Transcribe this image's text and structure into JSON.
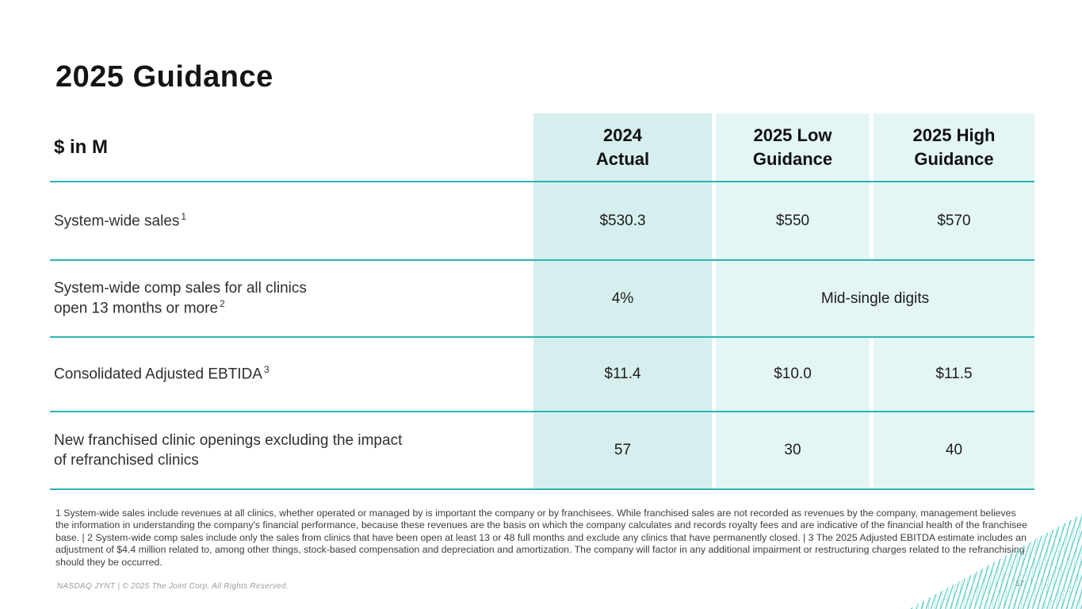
{
  "slide_title": "2025 Guidance",
  "table": {
    "unit_label": "$ in M",
    "columns": [
      {
        "line1": "2024",
        "line2": "Actual"
      },
      {
        "line1": "2025 Low",
        "line2": "Guidance"
      },
      {
        "line1": "2025 High",
        "line2": "Guidance"
      }
    ],
    "rows": [
      {
        "line1": "System-wide sales",
        "sup1": "1",
        "values": {
          "c1": "$530.3",
          "c2": "$550",
          "c3": "$570"
        }
      },
      {
        "line1": "System-wide comp sales for all clinics",
        "line2": "open 13 months or more",
        "sup2": "2",
        "values": {
          "c1": "4%",
          "merged": "Mid-single digits"
        }
      },
      {
        "line1": "Consolidated Adjusted EBTIDA",
        "sup1": "3",
        "values": {
          "c1": "$11.4",
          "c2": "$10.0",
          "c3": "$11.5"
        }
      },
      {
        "line1": "New franchised clinic openings excluding the impact",
        "line2": "of refranchised clinics",
        "values": {
          "c1": "57",
          "c2": "30",
          "c3": "40"
        }
      }
    ]
  },
  "footnotes": "1 System-wide sales include revenues at all clinics, whether operated or managed by is important the company or by franchisees. While franchised sales are not recorded as revenues by the company, management believes the information  in understanding the company's financial performance, because these revenues are the basis on which the company calculates and records royalty fees and are indicative of the financial health of the franchisee base. | 2 System-wide comp sales include only the sales from clinics that have been open at least 13 or 48 full months and exclude any clinics that have permanently closed. | 3 The 2025 Adjusted EBITDA estimate includes an adjustment of $4.4 million related to, among other things, stock-based compensation and depreciation and amortization. The company will factor in any additional impairment or restructuring charges related to the refranchising should they be occurred.",
  "footer": {
    "left": "NASDAQ JYNT   |  © 2025 The Joint Corp. All Rights Reserved.",
    "page_number": "17"
  },
  "colors": {
    "accent_teal": "#2cb3b3",
    "cell_dark_teal": "#d6eeee",
    "cell_light_teal": "#e4f5f5",
    "stripe_teal": "#5fcfca"
  }
}
